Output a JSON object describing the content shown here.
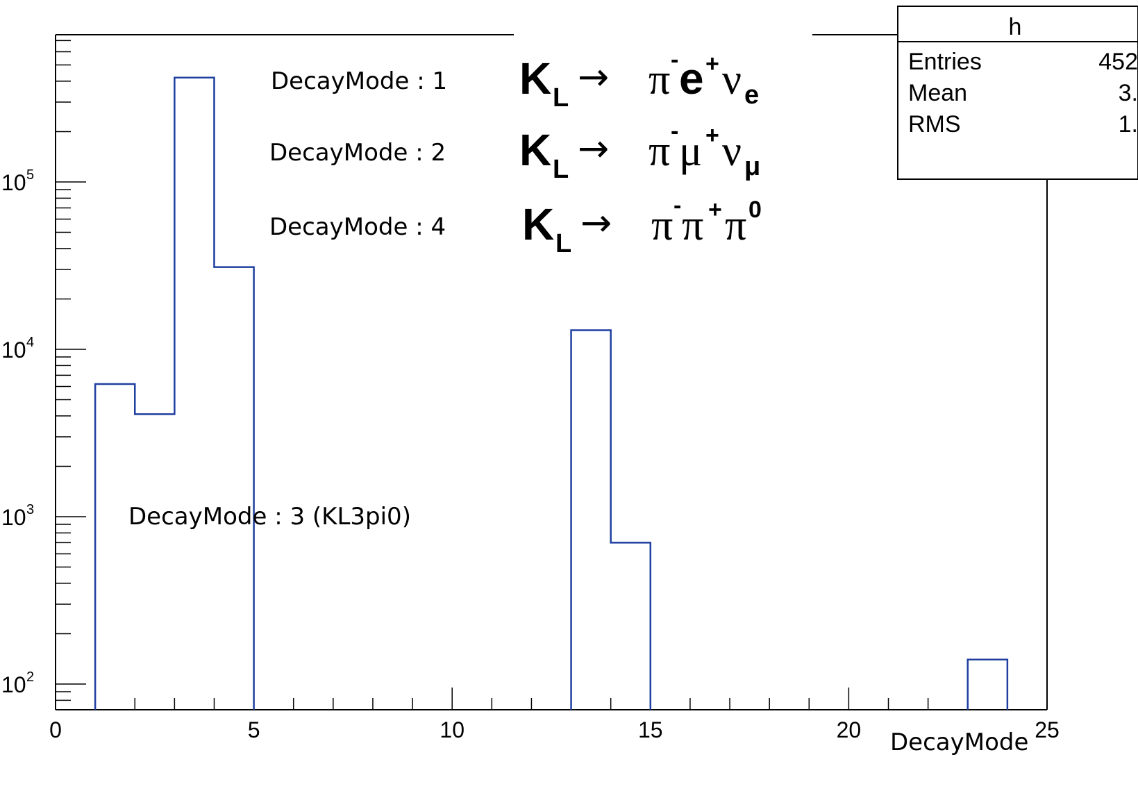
{
  "chart_data": {
    "type": "bar",
    "histogram": true,
    "log_y": true,
    "xlabel": "DecayMode",
    "ylabel": "",
    "xlim": [
      0,
      25
    ],
    "ylim": [
      80,
      1000000
    ],
    "x_ticks": [
      "0",
      "5",
      "10",
      "15",
      "20",
      "25"
    ],
    "y_ticks": [
      {
        "base": "10",
        "exp": "2",
        "value": 100
      },
      {
        "base": "10",
        "exp": "3",
        "value": 1000
      },
      {
        "base": "10",
        "exp": "4",
        "value": 10000
      },
      {
        "base": "10",
        "exp": "5",
        "value": 100000
      }
    ],
    "bins": [
      {
        "x0": 1,
        "x1": 2,
        "value": 6200
      },
      {
        "x0": 2,
        "x1": 3,
        "value": 4100
      },
      {
        "x0": 3,
        "x1": 4,
        "value": 420000
      },
      {
        "x0": 4,
        "x1": 5,
        "value": 31000
      },
      {
        "x0": 13,
        "x1": 14,
        "value": 13000
      },
      {
        "x0": 14,
        "x1": 15,
        "value": 700
      },
      {
        "x0": 23,
        "x1": 24,
        "value": 140
      }
    ],
    "line_color": "#1f3fa0"
  },
  "stats_box": {
    "title": "h",
    "rows": [
      {
        "label": "Entries",
        "value": "452"
      },
      {
        "label": "Mean",
        "value": "3."
      },
      {
        "label": "RMS",
        "value": "1."
      }
    ]
  },
  "annotations": {
    "mode1": "DecayMode : 1",
    "mode2": "DecayMode : 2",
    "mode4": "DecayMode : 4",
    "mode3": "DecayMode : 3 (KL3pi0)"
  },
  "equations": [
    {
      "lhs": "K",
      "lhs_sub": "L",
      "arrow": "→",
      "p1": "π",
      "p1_sup": "-",
      "p2": "e",
      "p2_sup": "+",
      "p3": "ν",
      "p3_sub": "e"
    },
    {
      "lhs": "K",
      "lhs_sub": "L",
      "arrow": "→",
      "p1": "π",
      "p1_sup": "-",
      "p2": "μ",
      "p2_sup": "+",
      "p3": "ν",
      "p3_sub": "μ"
    },
    {
      "lhs": "K",
      "lhs_sub": "L",
      "arrow": "→",
      "p1": "π",
      "p1_sup": "-",
      "p2": "π",
      "p2_sup": "+",
      "p3": "π",
      "p3_sup": "0"
    }
  ]
}
